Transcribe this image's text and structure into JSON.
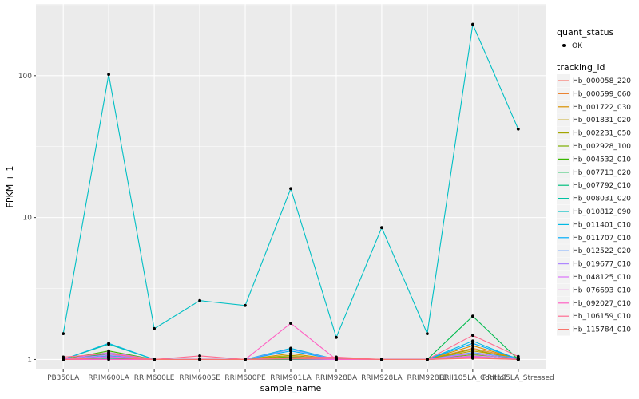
{
  "chart_data": {
    "type": "line",
    "xlabel": "sample_name",
    "ylabel": "FPKM + 1",
    "yscale": "log10",
    "ylim": [
      0.85,
      320
    ],
    "yticks": [
      1,
      10,
      100
    ],
    "ytick_labels": [
      "1",
      "10",
      "100"
    ],
    "categories": [
      "PB350LA",
      "RRIM600LA",
      "RRIM600LE",
      "RRIM600SE",
      "RRIM600PE",
      "RRIM901LA",
      "RRIM928BA",
      "RRIM928LA",
      "RRIM928LE",
      "RRII105LA_Control",
      "RRII105LA_Stressed"
    ],
    "legend_shape": {
      "title": "quant_status",
      "entries": [
        "OK"
      ]
    },
    "legend_color": {
      "title": "tracking_id"
    },
    "series": [
      {
        "name": "Hb_000058_220",
        "color": "#F8766D",
        "values": [
          1.0,
          1.02,
          1.0,
          1.0,
          1.0,
          1.0,
          1.0,
          1.0,
          1.0,
          1.02,
          1.0
        ]
      },
      {
        "name": "Hb_000599_060",
        "color": "#EA8331",
        "values": [
          1.01,
          1.03,
          1.0,
          1.0,
          1.0,
          1.03,
          1.0,
          1.0,
          1.0,
          1.2,
          1.02
        ]
      },
      {
        "name": "Hb_001722_030",
        "color": "#D89000",
        "values": [
          1.0,
          1.05,
          1.0,
          1.0,
          1.0,
          1.1,
          1.0,
          1.0,
          1.0,
          1.25,
          1.01
        ]
      },
      {
        "name": "Hb_001831_020",
        "color": "#C09B00",
        "values": [
          1.02,
          1.08,
          1.0,
          1.0,
          1.0,
          1.05,
          1.0,
          1.0,
          1.0,
          1.15,
          1.03
        ]
      },
      {
        "name": "Hb_002231_050",
        "color": "#A3A500",
        "values": [
          1.0,
          1.04,
          1.0,
          1.0,
          1.0,
          1.07,
          1.0,
          1.0,
          1.0,
          1.18,
          1.0
        ]
      },
      {
        "name": "Hb_002928_100",
        "color": "#7CAE00",
        "values": [
          1.01,
          1.12,
          1.0,
          1.0,
          1.0,
          1.02,
          1.0,
          1.0,
          1.0,
          1.08,
          1.02
        ]
      },
      {
        "name": "Hb_004532_010",
        "color": "#39B600",
        "values": [
          1.0,
          1.15,
          1.0,
          1.0,
          1.0,
          1.04,
          1.0,
          1.0,
          1.0,
          1.1,
          1.0
        ]
      },
      {
        "name": "Hb_007713_020",
        "color": "#00BB4E",
        "values": [
          1.0,
          1.1,
          1.0,
          1.0,
          1.0,
          1.01,
          1.0,
          1.0,
          1.0,
          2.02,
          1.0
        ]
      },
      {
        "name": "Hb_007792_010",
        "color": "#00BF7D",
        "values": [
          1.0,
          1.02,
          1.0,
          1.0,
          1.0,
          1.0,
          1.0,
          1.0,
          1.0,
          1.04,
          1.0
        ]
      },
      {
        "name": "Hb_008031_020",
        "color": "#00C1A3",
        "values": [
          1.0,
          1.28,
          1.0,
          1.0,
          1.0,
          1.01,
          1.0,
          1.0,
          1.0,
          1.05,
          1.0
        ]
      },
      {
        "name": "Hb_010812_090",
        "color": "#00BFC4",
        "values": [
          1.52,
          102.0,
          1.65,
          2.6,
          2.4,
          16.0,
          1.43,
          8.5,
          1.52,
          230.0,
          42.0
        ]
      },
      {
        "name": "Hb_011401_010",
        "color": "#00B9E3",
        "values": [
          1.0,
          1.3,
          1.0,
          1.0,
          1.0,
          1.2,
          1.0,
          1.0,
          1.0,
          1.35,
          1.0
        ]
      },
      {
        "name": "Hb_011707_010",
        "color": "#00ADFA",
        "values": [
          1.0,
          1.06,
          1.0,
          1.0,
          1.0,
          1.15,
          1.0,
          1.0,
          1.0,
          1.3,
          1.01
        ]
      },
      {
        "name": "Hb_012522_020",
        "color": "#619CFF",
        "values": [
          1.01,
          1.04,
          1.0,
          1.0,
          1.0,
          1.18,
          1.0,
          1.0,
          1.0,
          1.12,
          1.02
        ]
      },
      {
        "name": "Hb_019677_010",
        "color": "#AE87FF",
        "values": [
          1.0,
          1.08,
          1.0,
          1.0,
          1.0,
          1.03,
          1.0,
          1.0,
          1.0,
          1.06,
          1.0
        ]
      },
      {
        "name": "Hb_048125_010",
        "color": "#DB72FB",
        "values": [
          1.0,
          1.12,
          1.0,
          1.0,
          1.0,
          1.02,
          1.0,
          1.0,
          1.0,
          1.1,
          1.0
        ]
      },
      {
        "name": "Hb_076693_010",
        "color": "#F564E3",
        "values": [
          1.0,
          1.05,
          1.0,
          1.0,
          1.0,
          1.01,
          1.0,
          1.0,
          1.0,
          1.04,
          1.0
        ]
      },
      {
        "name": "Hb_092027_010",
        "color": "#FF61C3",
        "values": [
          1.0,
          1.0,
          1.0,
          1.0,
          1.0,
          1.8,
          1.0,
          1.0,
          1.0,
          1.05,
          1.0
        ]
      },
      {
        "name": "Hb_106159_010",
        "color": "#FF6C91",
        "values": [
          1.04,
          1.1,
          1.0,
          1.06,
          1.0,
          1.03,
          1.04,
          1.0,
          1.0,
          1.48,
          1.05
        ]
      },
      {
        "name": "Hb_115784_010",
        "color": "#F8766D",
        "values": [
          1.0,
          1.03,
          1.0,
          1.0,
          1.0,
          1.01,
          1.02,
          1.0,
          1.0,
          1.03,
          1.0
        ]
      }
    ]
  }
}
